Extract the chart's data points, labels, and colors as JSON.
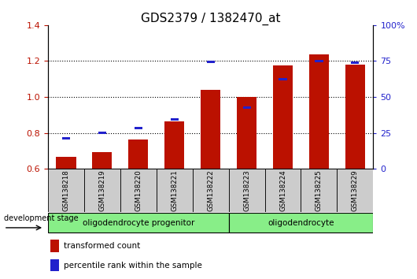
{
  "title": "GDS2379 / 1382470_at",
  "samples": [
    "GSM138218",
    "GSM138219",
    "GSM138220",
    "GSM138221",
    "GSM138222",
    "GSM138223",
    "GSM138224",
    "GSM138225",
    "GSM138229"
  ],
  "red_values": [
    0.665,
    0.695,
    0.765,
    0.865,
    1.04,
    1.0,
    1.175,
    1.235,
    1.18
  ],
  "blue_values": [
    0.77,
    0.8,
    0.825,
    0.875,
    1.195,
    0.94,
    1.1,
    1.2,
    1.19
  ],
  "ylim_left": [
    0.6,
    1.4
  ],
  "yticks_left": [
    0.6,
    0.8,
    1.0,
    1.2,
    1.4
  ],
  "yticks_right": [
    0,
    25,
    50,
    75,
    100
  ],
  "ytick_right_labels": [
    "0",
    "25",
    "50",
    "75",
    "100%"
  ],
  "red_color": "#BB1100",
  "blue_color": "#2222CC",
  "bar_bottom": 0.6,
  "group1_label": "oligodendrocyte progenitor",
  "group2_label": "oligodendrocyte",
  "group1_count": 5,
  "group2_count": 4,
  "legend_red": "transformed count",
  "legend_blue": "percentile rank within the sample",
  "dev_stage_label": "development stage",
  "group_bg_color": "#88EE88",
  "tick_bg_color": "#CCCCCC",
  "title_fontsize": 11,
  "tick_fontsize": 8,
  "label_fontsize": 8
}
